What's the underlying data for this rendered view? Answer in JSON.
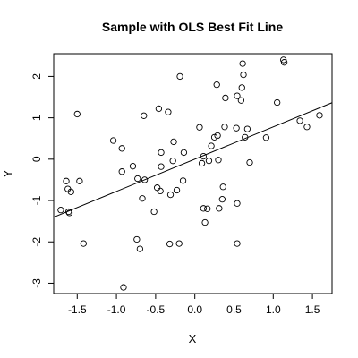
{
  "chart_data": {
    "type": "scatter",
    "title": "Sample with OLS Best Fit Line",
    "xlabel": "X",
    "ylabel": "Y",
    "xlim": [
      -1.8,
      1.75
    ],
    "ylim": [
      -3.25,
      2.55
    ],
    "xticks": [
      -1.5,
      -1.0,
      -0.5,
      0.0,
      0.5,
      1.0,
      1.5
    ],
    "xtick_labels": [
      "-1.5",
      "-1.0",
      "-0.5",
      "0.0",
      "0.5",
      "1.0",
      "1.5"
    ],
    "yticks": [
      -3,
      -2,
      -1,
      0,
      1,
      2
    ],
    "ytick_labels": [
      "-3",
      "-2",
      "-1",
      "0",
      "1",
      "2"
    ],
    "grid": false,
    "marker": "open-circle",
    "points": [
      {
        "x": -1.71,
        "y": -1.23
      },
      {
        "x": -1.64,
        "y": -0.53
      },
      {
        "x": -1.62,
        "y": -0.72
      },
      {
        "x": -1.61,
        "y": -1.27
      },
      {
        "x": -1.6,
        "y": -1.3
      },
      {
        "x": -1.58,
        "y": -0.79
      },
      {
        "x": -1.5,
        "y": 1.09
      },
      {
        "x": -1.47,
        "y": -0.53
      },
      {
        "x": -1.42,
        "y": -2.04
      },
      {
        "x": -1.04,
        "y": 0.45
      },
      {
        "x": -0.93,
        "y": 0.26
      },
      {
        "x": -0.93,
        "y": -0.3
      },
      {
        "x": -0.91,
        "y": -3.1
      },
      {
        "x": -0.79,
        "y": -0.17
      },
      {
        "x": -0.74,
        "y": -1.94
      },
      {
        "x": -0.73,
        "y": -0.47
      },
      {
        "x": -0.7,
        "y": -2.17
      },
      {
        "x": -0.67,
        "y": -0.95
      },
      {
        "x": -0.65,
        "y": 1.05
      },
      {
        "x": -0.64,
        "y": -0.5
      },
      {
        "x": -0.52,
        "y": -1.27
      },
      {
        "x": -0.48,
        "y": -0.69
      },
      {
        "x": -0.46,
        "y": 1.22
      },
      {
        "x": -0.44,
        "y": -0.77
      },
      {
        "x": -0.43,
        "y": 0.16
      },
      {
        "x": -0.43,
        "y": -0.18
      },
      {
        "x": -0.34,
        "y": 1.14
      },
      {
        "x": -0.32,
        "y": -2.05
      },
      {
        "x": -0.31,
        "y": -0.86
      },
      {
        "x": -0.28,
        "y": -0.04
      },
      {
        "x": -0.27,
        "y": 0.42
      },
      {
        "x": -0.23,
        "y": -0.75
      },
      {
        "x": -0.2,
        "y": -2.04
      },
      {
        "x": -0.19,
        "y": 2.0
      },
      {
        "x": -0.15,
        "y": -0.52
      },
      {
        "x": -0.14,
        "y": 0.16
      },
      {
        "x": 0.06,
        "y": 0.77
      },
      {
        "x": 0.09,
        "y": -0.1
      },
      {
        "x": 0.11,
        "y": 0.07
      },
      {
        "x": 0.11,
        "y": -1.19
      },
      {
        "x": 0.13,
        "y": -1.53
      },
      {
        "x": 0.16,
        "y": -1.2
      },
      {
        "x": 0.18,
        "y": -0.04
      },
      {
        "x": 0.21,
        "y": 0.32
      },
      {
        "x": 0.25,
        "y": 0.53
      },
      {
        "x": 0.28,
        "y": 1.8
      },
      {
        "x": 0.29,
        "y": 0.57
      },
      {
        "x": 0.3,
        "y": -0.02
      },
      {
        "x": 0.31,
        "y": -1.19
      },
      {
        "x": 0.35,
        "y": -0.97
      },
      {
        "x": 0.36,
        "y": -0.67
      },
      {
        "x": 0.38,
        "y": 0.78
      },
      {
        "x": 0.39,
        "y": 1.48
      },
      {
        "x": 0.53,
        "y": 0.75
      },
      {
        "x": 0.54,
        "y": -1.07
      },
      {
        "x": 0.54,
        "y": -2.04
      },
      {
        "x": 0.54,
        "y": 1.53
      },
      {
        "x": 0.59,
        "y": 1.42
      },
      {
        "x": 0.6,
        "y": 1.73
      },
      {
        "x": 0.61,
        "y": 2.31
      },
      {
        "x": 0.62,
        "y": 2.04
      },
      {
        "x": 0.64,
        "y": 0.53
      },
      {
        "x": 0.67,
        "y": 0.73
      },
      {
        "x": 0.7,
        "y": -0.08
      },
      {
        "x": 0.91,
        "y": 0.52
      },
      {
        "x": 1.05,
        "y": 1.37
      },
      {
        "x": 1.13,
        "y": 2.4
      },
      {
        "x": 1.14,
        "y": 2.34
      },
      {
        "x": 1.34,
        "y": 0.93
      },
      {
        "x": 1.43,
        "y": 0.78
      },
      {
        "x": 1.59,
        "y": 1.06
      }
    ],
    "fit_line": {
      "intercept": 0.0,
      "slope": 0.78
    }
  }
}
